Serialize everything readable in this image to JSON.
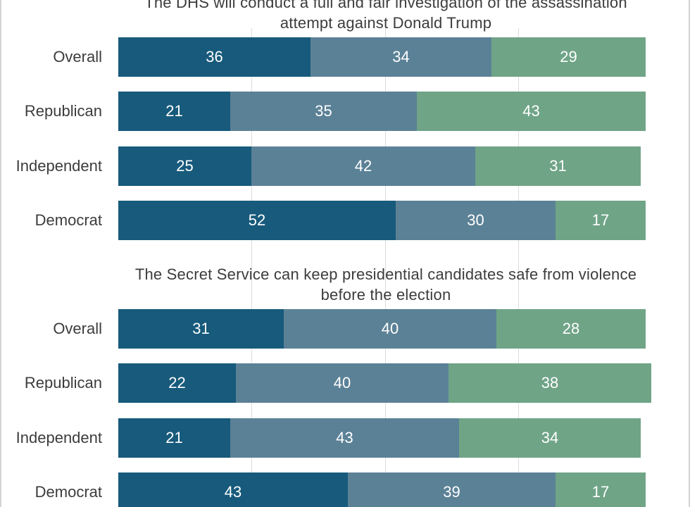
{
  "chart_data": {
    "type": "bar",
    "orientation": "horizontal",
    "stacked": true,
    "grid": true,
    "xlim": [
      0,
      100
    ],
    "colors": [
      "#175a7b",
      "#5b8196",
      "#6fa487"
    ],
    "panels": [
      {
        "title": "The DHS will conduct a full and fair investigation of the assassination attempt against Donald Trump",
        "categories": [
          "Overall",
          "Republican",
          "Independent",
          "Democrat"
        ],
        "series": [
          {
            "values": [
              36,
              21,
              25,
              52
            ]
          },
          {
            "values": [
              34,
              35,
              42,
              30
            ]
          },
          {
            "values": [
              29,
              43,
              31,
              17
            ]
          }
        ]
      },
      {
        "title": "The Secret Service can keep presidential candidates safe from violence before the election",
        "categories": [
          "Overall",
          "Republican",
          "Independent",
          "Democrat"
        ],
        "series": [
          {
            "values": [
              31,
              22,
              21,
              43
            ]
          },
          {
            "values": [
              40,
              40,
              43,
              39
            ]
          },
          {
            "values": [
              28,
              38,
              34,
              17
            ]
          }
        ]
      }
    ]
  }
}
